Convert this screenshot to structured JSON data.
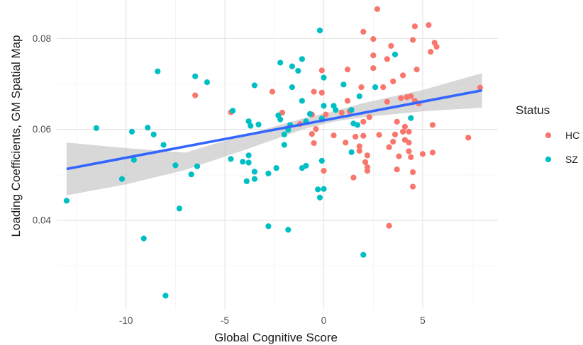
{
  "chart_data": {
    "type": "scatter",
    "title": "",
    "xlabel": "Global Cognitive Score",
    "ylabel": "Loading Coefficients, GM Spatial Map",
    "xlim": [
      -13.5,
      8.8
    ],
    "ylim": [
      0.0205,
      0.0885
    ],
    "x_ticks": [
      -10,
      -5,
      0,
      5
    ],
    "x_tick_labels": [
      "-10",
      "-5",
      "0",
      "5"
    ],
    "y_ticks": [
      0.04,
      0.06,
      0.08
    ],
    "y_tick_labels": [
      "0.04",
      "0.06",
      "0.08"
    ],
    "grid": true,
    "legend": {
      "title": "Status",
      "position": "right"
    },
    "colors": {
      "HC": "#F8766D",
      "SZ": "#00BFC4",
      "fit": "#3366FF",
      "band": "#bebebe"
    },
    "series": [
      {
        "name": "HC",
        "points": [
          [
            2.7,
            0.0865
          ],
          [
            5.3,
            0.083
          ],
          [
            4.6,
            0.0827
          ],
          [
            2.0,
            0.0815
          ],
          [
            2.5,
            0.0799
          ],
          [
            4.5,
            0.0797
          ],
          [
            5.6,
            0.0791
          ],
          [
            5.7,
            0.0782
          ],
          [
            3.4,
            0.0784
          ],
          [
            5.4,
            0.0771
          ],
          [
            2.5,
            0.0763
          ],
          [
            3.2,
            0.0755
          ],
          [
            -0.1,
            0.073
          ],
          [
            1.2,
            0.0732
          ],
          [
            4.7,
            0.0732
          ],
          [
            4.0,
            0.0719
          ],
          [
            2.5,
            0.0735
          ],
          [
            3.5,
            0.0706
          ],
          [
            1.9,
            0.0693
          ],
          [
            3.0,
            0.0693
          ],
          [
            -2.6,
            0.0683
          ],
          [
            -0.5,
            0.0683
          ],
          [
            -0.1,
            0.0681
          ],
          [
            -6.5,
            0.0675
          ],
          [
            4.4,
            0.0673
          ],
          [
            4.2,
            0.0671
          ],
          [
            3.9,
            0.0669
          ],
          [
            4.6,
            0.0663
          ],
          [
            1.2,
            0.0663
          ],
          [
            4.8,
            0.0657
          ],
          [
            3.2,
            0.0661
          ],
          [
            7.9,
            0.0692
          ],
          [
            -4.7,
            0.0638
          ],
          [
            -2.1,
            0.0637
          ],
          [
            0.9,
            0.0637
          ],
          [
            1.3,
            0.064
          ],
          [
            -0.6,
            0.0633
          ],
          [
            0.1,
            0.0633
          ],
          [
            2.3,
            0.0627
          ],
          [
            -1.2,
            0.0612
          ],
          [
            2.0,
            0.0617
          ],
          [
            3.7,
            0.0617
          ],
          [
            -0.4,
            0.0601
          ],
          [
            5.5,
            0.061
          ],
          [
            4.1,
            0.0606
          ],
          [
            4.0,
            0.0595
          ],
          [
            3.6,
            0.0589
          ],
          [
            2.8,
            0.0588
          ],
          [
            4.3,
            0.0595
          ],
          [
            -0.6,
            0.059
          ],
          [
            0.5,
            0.0587
          ],
          [
            1.6,
            0.0584
          ],
          [
            2.0,
            0.0586
          ],
          [
            4.1,
            0.0577
          ],
          [
            4.3,
            0.0571
          ],
          [
            7.3,
            0.0582
          ],
          [
            -0.5,
            0.057
          ],
          [
            1.1,
            0.0571
          ],
          [
            1.8,
            0.0563
          ],
          [
            3.5,
            0.0573
          ],
          [
            3.3,
            0.0561
          ],
          [
            1.8,
            0.0553
          ],
          [
            4.3,
            0.0552
          ],
          [
            5.5,
            0.0549
          ],
          [
            5.0,
            0.0546
          ],
          [
            2.2,
            0.0543
          ],
          [
            4.4,
            0.0539
          ],
          [
            3.8,
            0.0541
          ],
          [
            2.1,
            0.0528
          ],
          [
            2.2,
            0.0517
          ],
          [
            2.2,
            0.0509
          ],
          [
            0.0,
            0.0509
          ],
          [
            4.5,
            0.0506
          ],
          [
            3.7,
            0.0512
          ],
          [
            1.5,
            0.0494
          ],
          [
            4.5,
            0.0474
          ],
          [
            3.3,
            0.0388
          ]
        ]
      },
      {
        "name": "SZ",
        "points": [
          [
            -0.2,
            0.0818
          ],
          [
            3.6,
            0.0765
          ],
          [
            -2.2,
            0.0747
          ],
          [
            -1.1,
            0.0755
          ],
          [
            -1.6,
            0.0739
          ],
          [
            -1.3,
            0.0729
          ],
          [
            -8.4,
            0.0728
          ],
          [
            -6.5,
            0.0717
          ],
          [
            0.0,
            0.0714
          ],
          [
            -5.9,
            0.0704
          ],
          [
            -3.5,
            0.0697
          ],
          [
            1.0,
            0.0699
          ],
          [
            -1.6,
            0.0693
          ],
          [
            2.6,
            0.0693
          ],
          [
            1.8,
            0.0673
          ],
          [
            -1.1,
            0.0663
          ],
          [
            0.5,
            0.0652
          ],
          [
            0.0,
            0.0652
          ],
          [
            0.6,
            0.0643
          ],
          [
            1.4,
            0.0643
          ],
          [
            -0.7,
            0.0634
          ],
          [
            -2.3,
            0.0631
          ],
          [
            -2.2,
            0.0622
          ],
          [
            -0.1,
            0.0624
          ],
          [
            -0.9,
            0.0618
          ],
          [
            -4.6,
            0.0641
          ],
          [
            -3.8,
            0.0618
          ],
          [
            -3.7,
            0.0608
          ],
          [
            -3.3,
            0.0611
          ],
          [
            -1.7,
            0.061
          ],
          [
            -1.8,
            0.0599
          ],
          [
            -2.0,
            0.0589
          ],
          [
            1.5,
            0.0613
          ],
          [
            1.7,
            0.061
          ],
          [
            4.4,
            0.0625
          ],
          [
            -11.5,
            0.0603
          ],
          [
            -8.9,
            0.0604
          ],
          [
            -8.6,
            0.0589
          ],
          [
            -9.7,
            0.0595
          ],
          [
            -8.1,
            0.0566
          ],
          [
            -9.6,
            0.0533
          ],
          [
            -4.7,
            0.0535
          ],
          [
            -3.8,
            0.0543
          ],
          [
            -4.1,
            0.0529
          ],
          [
            -3.8,
            0.0527
          ],
          [
            -2.0,
            0.0566
          ],
          [
            1.4,
            0.055
          ],
          [
            -7.5,
            0.0521
          ],
          [
            -6.4,
            0.0519
          ],
          [
            -2.4,
            0.0515
          ],
          [
            -1.1,
            0.0515
          ],
          [
            -0.9,
            0.052
          ],
          [
            -0.1,
            0.0531
          ],
          [
            -3.5,
            0.0507
          ],
          [
            -2.8,
            0.0503
          ],
          [
            -6.7,
            0.0501
          ],
          [
            -10.2,
            0.0491
          ],
          [
            -3.5,
            0.0491
          ],
          [
            -3.9,
            0.0486
          ],
          [
            -0.3,
            0.0468
          ],
          [
            0.0,
            0.0469
          ],
          [
            -0.2,
            0.045
          ],
          [
            -13.0,
            0.0443
          ],
          [
            -7.3,
            0.0426
          ],
          [
            -2.8,
            0.0387
          ],
          [
            -1.8,
            0.0379
          ],
          [
            -9.1,
            0.036
          ],
          [
            2.0,
            0.0324
          ],
          [
            -8.0,
            0.0234
          ]
        ]
      }
    ],
    "fit_line": {
      "x": [
        -13.0,
        8.0
      ],
      "y": [
        0.0513,
        0.0686
      ]
    },
    "confidence_band": {
      "x": [
        -13.0,
        -10.0,
        -7.0,
        -4.0,
        -1.0,
        0.5,
        2.0,
        5.0,
        8.0
      ],
      "upper": [
        0.0571,
        0.0559,
        0.0549,
        0.0588,
        0.0625,
        0.064,
        0.0658,
        0.0687,
        0.0724
      ],
      "lower": [
        0.0455,
        0.0479,
        0.0511,
        0.0555,
        0.0601,
        0.0617,
        0.0627,
        0.064,
        0.0648
      ]
    }
  }
}
